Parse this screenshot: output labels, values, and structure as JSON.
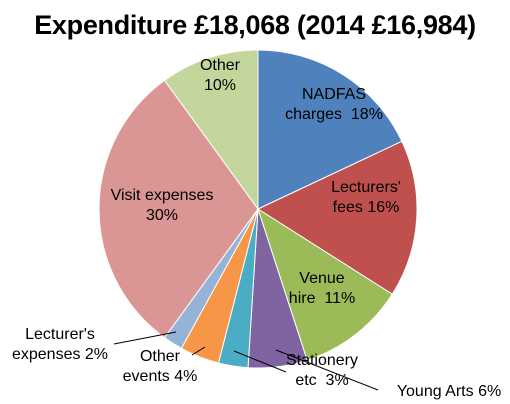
{
  "chart_data": {
    "type": "pie",
    "title": "Expenditure £18,068 (2014 £16,984)",
    "slices": [
      {
        "label_lines": [
          "NADFAS",
          "charges  18%"
        ],
        "value": 18,
        "color": "#4f81bd"
      },
      {
        "label_lines": [
          "Lecturers'",
          "fees 16%"
        ],
        "value": 16,
        "color": "#c0504d"
      },
      {
        "label_lines": [
          "Venue",
          "hire  11%"
        ],
        "value": 11,
        "color": "#9bbb59"
      },
      {
        "label_lines": [
          "Young Arts 6%"
        ],
        "value": 6,
        "color": "#8064a2"
      },
      {
        "label_lines": [
          "Stationery",
          "etc  3%"
        ],
        "value": 3,
        "color": "#4bacc6"
      },
      {
        "label_lines": [
          "Other",
          "events 4%"
        ],
        "value": 4,
        "color": "#f79646"
      },
      {
        "label_lines": [
          "Lecturer's",
          "expenses 2%"
        ],
        "value": 2,
        "color": "#95b3d7"
      },
      {
        "label_lines": [
          "Visit expenses",
          "30%"
        ],
        "value": 30,
        "color": "#d99694"
      },
      {
        "label_lines": [
          "Other",
          "10%"
        ],
        "value": 10,
        "color": "#c3d69b"
      }
    ]
  }
}
